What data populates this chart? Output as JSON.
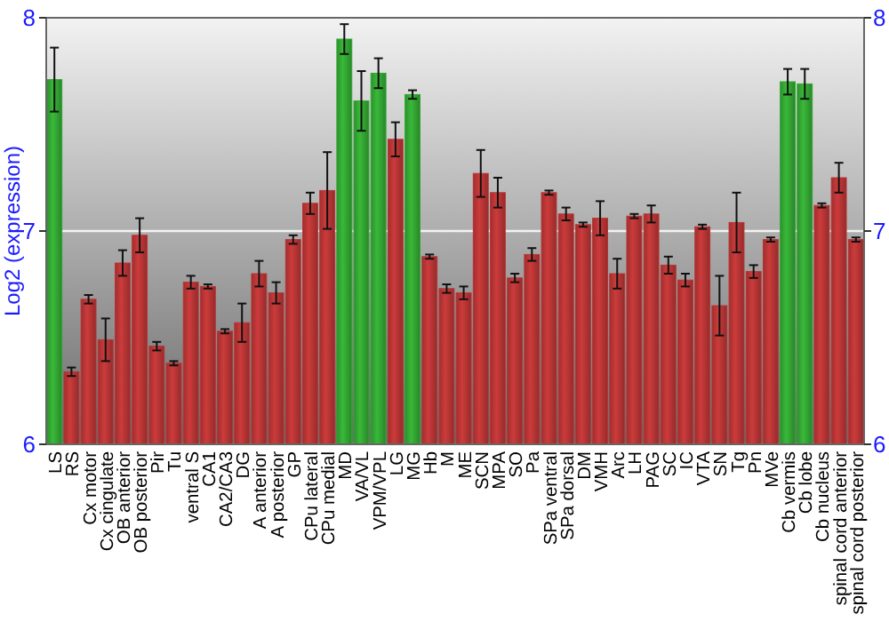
{
  "chart_data": {
    "type": "bar",
    "ylabel": "Log2 (expression)",
    "categories": [
      "LS",
      "RS",
      "Cx motor",
      "Cx cingulate",
      "OB anterior",
      "OB posterior",
      "Pir",
      "Tu",
      "ventral S",
      "CA1",
      "CA2/CA3",
      "DG",
      "A anterior",
      "A posterior",
      "GP",
      "CPu lateral",
      "CPu medial",
      "MD",
      "VA/VL",
      "VPM/VPL",
      "LG",
      "MG",
      "Hb",
      "M",
      "ME",
      "SCN",
      "MPA",
      "SO",
      "Pa",
      "SPa ventral",
      "SPa dorsal",
      "DM",
      "VMH",
      "Arc",
      "LH",
      "PAG",
      "SC",
      "IC",
      "VTA",
      "SN",
      "Tg",
      "Pn",
      "MVe",
      "Cb vermis",
      "Cb lobe",
      "Cb nucleus",
      "spinal cord anterior",
      "spinal cord posterior"
    ],
    "values": [
      7.71,
      6.34,
      6.68,
      6.49,
      6.85,
      6.98,
      6.46,
      6.38,
      6.76,
      6.74,
      6.53,
      6.57,
      6.8,
      6.71,
      6.96,
      7.13,
      7.19,
      7.9,
      7.61,
      7.74,
      7.43,
      7.64,
      6.88,
      6.73,
      6.71,
      7.27,
      7.18,
      6.78,
      6.89,
      7.18,
      7.08,
      7.03,
      7.06,
      6.8,
      7.07,
      7.08,
      6.84,
      6.77,
      7.02,
      6.65,
      7.04,
      6.81,
      6.96,
      7.7,
      7.69,
      7.12,
      7.25,
      6.96
    ],
    "errors": [
      0.15,
      0.02,
      0.02,
      0.1,
      0.06,
      0.08,
      0.02,
      0.01,
      0.03,
      0.01,
      0.01,
      0.09,
      0.06,
      0.05,
      0.02,
      0.05,
      0.18,
      0.07,
      0.14,
      0.07,
      0.08,
      0.02,
      0.01,
      0.02,
      0.03,
      0.11,
      0.07,
      0.02,
      0.03,
      0.01,
      0.03,
      0.01,
      0.08,
      0.07,
      0.01,
      0.04,
      0.04,
      0.03,
      0.01,
      0.14,
      0.14,
      0.03,
      0.01,
      0.06,
      0.07,
      0.01,
      0.07,
      0.01
    ],
    "colors": [
      "#33a633",
      "#b83535",
      "#b83535",
      "#b83535",
      "#b83535",
      "#b83535",
      "#b83535",
      "#b83535",
      "#b83535",
      "#b83535",
      "#b83535",
      "#b83535",
      "#b83535",
      "#b83535",
      "#b83535",
      "#b83535",
      "#b83535",
      "#33a633",
      "#33a633",
      "#33a633",
      "#b83535",
      "#33a633",
      "#b83535",
      "#b83535",
      "#b83535",
      "#b83535",
      "#b83535",
      "#b83535",
      "#b83535",
      "#b83535",
      "#b83535",
      "#b83535",
      "#b83535",
      "#b83535",
      "#b83535",
      "#b83535",
      "#b83535",
      "#b83535",
      "#b83535",
      "#b83535",
      "#b83535",
      "#b83535",
      "#b83535",
      "#33a633",
      "#33a633",
      "#b83535",
      "#b83535",
      "#b83535"
    ],
    "ylim": [
      6,
      8
    ],
    "yticks": [
      6,
      7,
      8
    ],
    "y2lim": [
      6,
      8
    ],
    "y2ticks": [
      6,
      7,
      8
    ],
    "grid": "y"
  }
}
